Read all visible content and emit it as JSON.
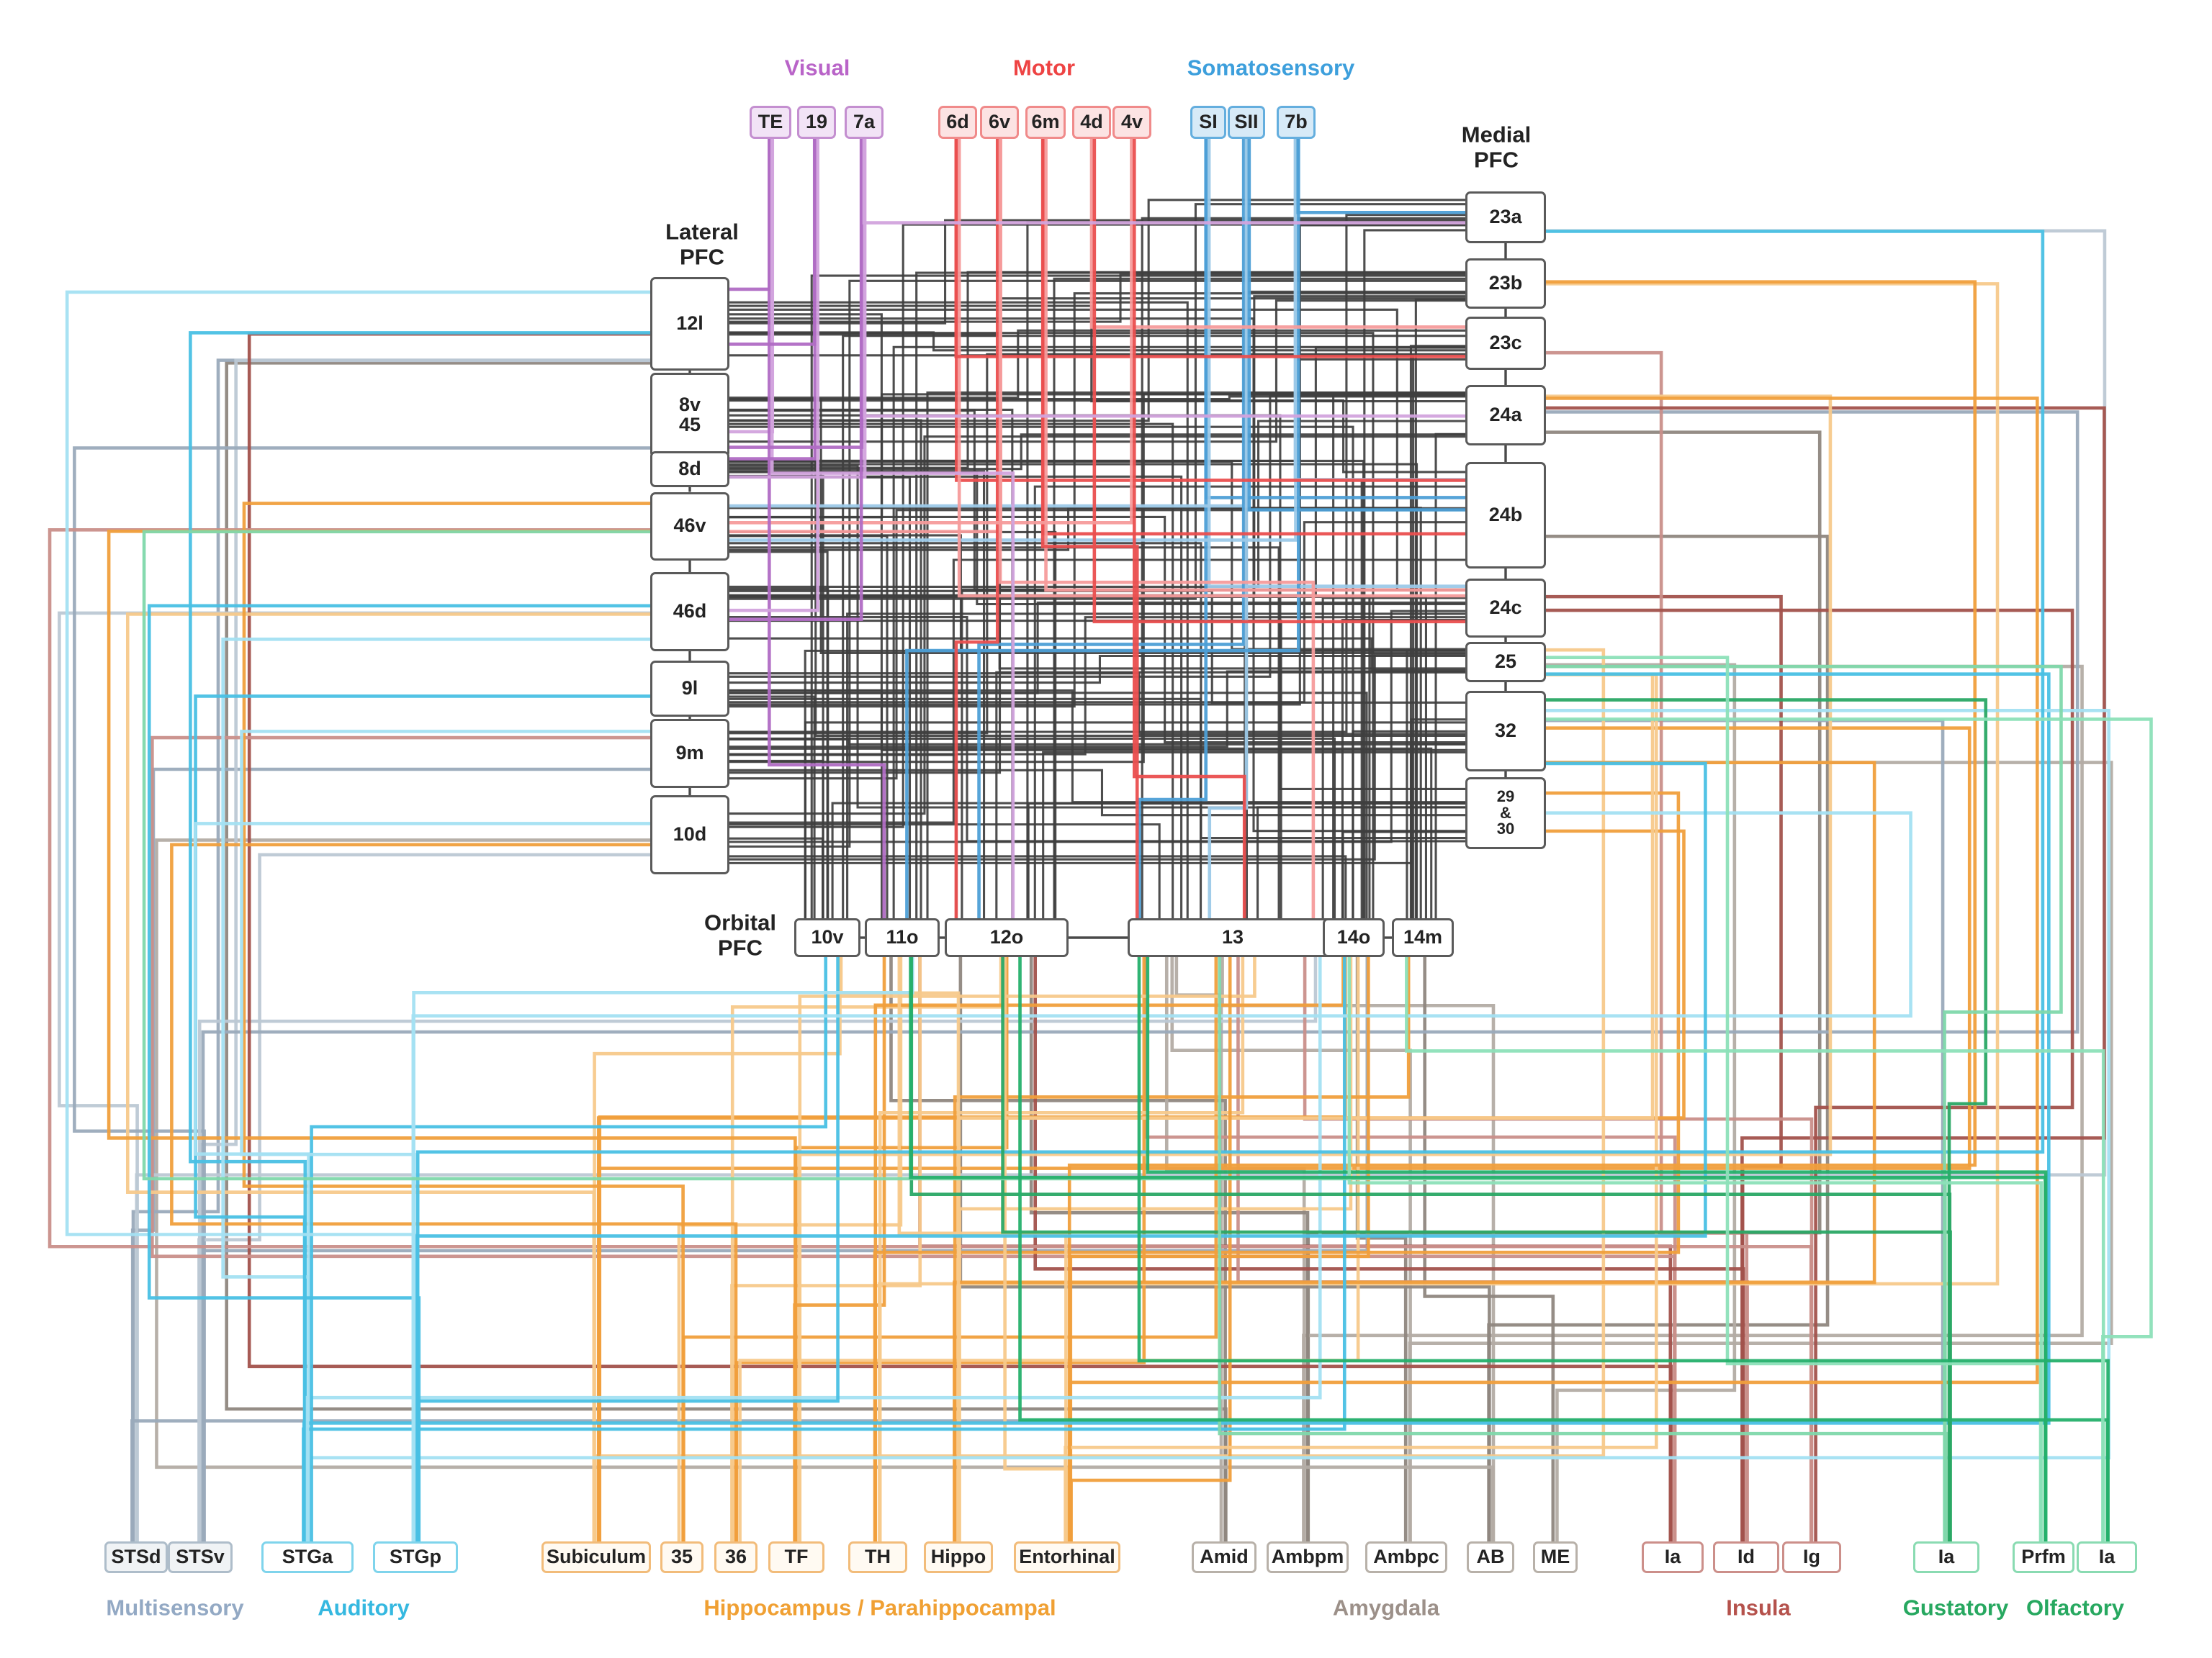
{
  "figure": {
    "kind": "brain-connectivity-diagram",
    "line_color_black": "#3f3f3f"
  },
  "groups": [
    {
      "id": "visual",
      "label": "Visual",
      "labelColor": "#b964c8",
      "border": "#c48fd0",
      "fill": "#f2e3f6",
      "lines": [
        "#b06cc4",
        "#d2a3dd"
      ],
      "nodes": [
        {
          "id": "TE",
          "label": "TE"
        },
        {
          "id": "a19",
          "label": "19"
        },
        {
          "id": "a7a",
          "label": "7a"
        }
      ]
    },
    {
      "id": "motor",
      "label": "Motor",
      "labelColor": "#ee4343",
      "border": "#f08a8a",
      "fill": "#fce3e3",
      "lines": [
        "#ea4f4f",
        "#f59b9b"
      ],
      "nodes": [
        {
          "id": "m6d",
          "label": "6d"
        },
        {
          "id": "m6v",
          "label": "6v"
        },
        {
          "id": "m6m",
          "label": "6m"
        },
        {
          "id": "m4d",
          "label": "4d"
        },
        {
          "id": "m4v",
          "label": "4v"
        }
      ]
    },
    {
      "id": "somatosensory",
      "label": "Somatosensory",
      "labelColor": "#3d9fdc",
      "border": "#64aede",
      "fill": "#d7eaf7",
      "lines": [
        "#4d9fd6",
        "#9cc9e8"
      ],
      "nodes": [
        {
          "id": "SI",
          "label": "SI"
        },
        {
          "id": "SII",
          "label": "SII"
        },
        {
          "id": "s7b",
          "label": "7b"
        }
      ]
    },
    {
      "id": "lateral",
      "label": "Lateral\nPFC",
      "labelColor": "#232323",
      "border": "#5a5a5a",
      "fill": "#ffffff",
      "lines": [
        "#3f3f3f",
        "#3f3f3f"
      ],
      "nodes": [
        {
          "id": "L12l",
          "label": "12l"
        },
        {
          "id": "L8v45",
          "label": "8v\n45"
        },
        {
          "id": "L8d",
          "label": "8d"
        },
        {
          "id": "L46v",
          "label": "46v"
        },
        {
          "id": "L46d",
          "label": "46d"
        },
        {
          "id": "L9l",
          "label": "9l"
        },
        {
          "id": "L9m",
          "label": "9m"
        },
        {
          "id": "L10d",
          "label": "10d"
        }
      ]
    },
    {
      "id": "medial",
      "label": "Medial\nPFC",
      "labelColor": "#232323",
      "border": "#5a5a5a",
      "fill": "#ffffff",
      "lines": [
        "#3f3f3f",
        "#3f3f3f"
      ],
      "nodes": [
        {
          "id": "M23a",
          "label": "23a"
        },
        {
          "id": "M23b",
          "label": "23b"
        },
        {
          "id": "M23c",
          "label": "23c"
        },
        {
          "id": "M24a",
          "label": "24a"
        },
        {
          "id": "M24b",
          "label": "24b"
        },
        {
          "id": "M24c",
          "label": "24c"
        },
        {
          "id": "M25",
          "label": "25"
        },
        {
          "id": "M32",
          "label": "32"
        },
        {
          "id": "M2930",
          "label": "29\n&\n30"
        }
      ]
    },
    {
      "id": "orbital",
      "label": "Orbital\nPFC",
      "labelColor": "#232323",
      "border": "#5a5a5a",
      "fill": "#ffffff",
      "lines": [
        "#3f3f3f",
        "#3f3f3f"
      ],
      "nodes": [
        {
          "id": "O10v",
          "label": "10v"
        },
        {
          "id": "O11o",
          "label": "11o"
        },
        {
          "id": "O12o",
          "label": "12o"
        },
        {
          "id": "O13",
          "label": "13"
        },
        {
          "id": "O14o",
          "label": "14o"
        },
        {
          "id": "O14m",
          "label": "14m"
        }
      ]
    },
    {
      "id": "multisensory",
      "label": "Multisensory",
      "labelColor": "#93a9c4",
      "border": "#aebdca",
      "fill": "#f0f3f5",
      "lines": [
        "#9aaabb",
        "#bcc8d4"
      ],
      "nodes": [
        {
          "id": "STSd",
          "label": "STSd"
        },
        {
          "id": "STSv",
          "label": "STSv"
        }
      ]
    },
    {
      "id": "auditory",
      "label": "Auditory",
      "labelColor": "#35b8e0",
      "border": "#7fd4ec",
      "fill": "#ffffff",
      "lines": [
        "#49c0e4",
        "#a3e0f2"
      ],
      "nodes": [
        {
          "id": "STGa",
          "label": "STGa"
        },
        {
          "id": "STGp",
          "label": "STGp"
        }
      ]
    },
    {
      "id": "hippocampal",
      "label": "Hippocampus / Parahippocampal",
      "labelColor": "#f0a033",
      "border": "#f2bc7a",
      "fill": "#fffaf2",
      "lines": [
        "#f09f3c",
        "#f7c98b"
      ],
      "nodes": [
        {
          "id": "Sub",
          "label": "Subiculum"
        },
        {
          "id": "h35",
          "label": "35"
        },
        {
          "id": "h36",
          "label": "36"
        },
        {
          "id": "TF",
          "label": "TF"
        },
        {
          "id": "TH",
          "label": "TH"
        },
        {
          "id": "Hippo",
          "label": "Hippo"
        },
        {
          "id": "Ent",
          "label": "Entorhinal"
        }
      ]
    },
    {
      "id": "amygdala",
      "label": "Amygdala",
      "labelColor": "#9c9089",
      "border": "#b8b1a9",
      "fill": "#ffffff",
      "lines": [
        "#8f8780",
        "#b3aca4"
      ],
      "nodes": [
        {
          "id": "Amid",
          "label": "Amid"
        },
        {
          "id": "Ambpm",
          "label": "Ambpm"
        },
        {
          "id": "Ambpc",
          "label": "Ambpc"
        },
        {
          "id": "AB",
          "label": "AB"
        },
        {
          "id": "ME",
          "label": "ME"
        }
      ]
    },
    {
      "id": "insula",
      "label": "Insula",
      "labelColor": "#b5524c",
      "border": "#cc8f8a",
      "fill": "#ffffff",
      "lines": [
        "#a2524c",
        "#c98f8a"
      ],
      "nodes": [
        {
          "id": "IaI",
          "label": "Ia"
        },
        {
          "id": "Id",
          "label": "Id"
        },
        {
          "id": "Ig",
          "label": "Ig"
        }
      ]
    },
    {
      "id": "gustatory",
      "label": "Gustatory",
      "labelColor": "#27a860",
      "border": "#8adbb2",
      "fill": "#ffffff",
      "lines": [
        "#2aa865",
        "#7fd8ab"
      ],
      "nodes": [
        {
          "id": "Gu",
          "label": "Ia"
        }
      ]
    },
    {
      "id": "olfactory",
      "label": "Olfactory",
      "labelColor": "#27a860",
      "border": "#8adbb2",
      "fill": "#ffffff",
      "lines": [
        "#25b06b",
        "#8ce0b8"
      ],
      "nodes": [
        {
          "id": "Prfm",
          "label": "Prfm"
        },
        {
          "id": "IaO",
          "label": "Ia"
        }
      ]
    }
  ],
  "connections": {
    "colored": {
      "visual": [
        [
          "TE",
          "L12l"
        ],
        [
          "TE",
          "L8v45"
        ],
        [
          "TE",
          "O11o"
        ],
        [
          "TE",
          "O12o"
        ],
        [
          "a19",
          "L8d"
        ],
        [
          "a19",
          "L46d"
        ],
        [
          "a19",
          "L12l"
        ],
        [
          "a7a",
          "L8d"
        ],
        [
          "a7a",
          "L8v45"
        ],
        [
          "a7a",
          "M24a"
        ],
        [
          "a7a",
          "L46d"
        ],
        [
          "a7a",
          "M23a"
        ]
      ],
      "motor": [
        [
          "m6d",
          "M24b"
        ],
        [
          "m6d",
          "M24c"
        ],
        [
          "m6d",
          "M23c"
        ],
        [
          "m6v",
          "L46v"
        ],
        [
          "m6v",
          "O12o"
        ],
        [
          "m6v",
          "O13"
        ],
        [
          "m6m",
          "M24b"
        ],
        [
          "m6m",
          "M24c"
        ],
        [
          "m6m",
          "O13"
        ],
        [
          "m4d",
          "M23c"
        ],
        [
          "m4d",
          "M24c"
        ],
        [
          "m4v",
          "L46v"
        ],
        [
          "m4v",
          "O13"
        ]
      ],
      "somatosensory": [
        [
          "SI",
          "M24b"
        ],
        [
          "SI",
          "M24c"
        ],
        [
          "SI",
          "O13"
        ],
        [
          "SII",
          "L46v"
        ],
        [
          "SII",
          "O12o"
        ],
        [
          "SII",
          "O13"
        ],
        [
          "SII",
          "M24b"
        ],
        [
          "s7b",
          "L46v"
        ],
        [
          "s7b",
          "O11o"
        ],
        [
          "s7b",
          "M24b"
        ],
        [
          "s7b",
          "M23a"
        ]
      ],
      "multisensory": [
        [
          "STSd",
          "L12l"
        ],
        [
          "STSd",
          "L46d"
        ],
        [
          "STSd",
          "L9m"
        ],
        [
          "STSd",
          "M23a"
        ],
        [
          "STSd",
          "M32"
        ],
        [
          "STSv",
          "L12l"
        ],
        [
          "STSv",
          "L8v45"
        ],
        [
          "STSv",
          "O13"
        ],
        [
          "STSv",
          "O14o"
        ],
        [
          "STSv",
          "L10d"
        ],
        [
          "STSv",
          "M24a"
        ]
      ],
      "auditory": [
        [
          "STGa",
          "L12l"
        ],
        [
          "STGa",
          "L46d"
        ],
        [
          "STGa",
          "L9l"
        ],
        [
          "STGa",
          "L10d"
        ],
        [
          "STGa",
          "M25"
        ],
        [
          "STGa",
          "M32"
        ],
        [
          "STGa",
          "O14o"
        ],
        [
          "STGa",
          "O13"
        ],
        [
          "STGa",
          "O10v"
        ],
        [
          "STGp",
          "L12l"
        ],
        [
          "STGp",
          "L46d"
        ],
        [
          "STGp",
          "L9m"
        ],
        [
          "STGp",
          "O10v"
        ],
        [
          "STGp",
          "O11o"
        ],
        [
          "STGp",
          "M23a"
        ],
        [
          "STGp",
          "M2930"
        ],
        [
          "STGp",
          "M32"
        ]
      ],
      "hippocampal": [
        [
          "Sub",
          "O14o"
        ],
        [
          "Sub",
          "M25"
        ],
        [
          "Sub",
          "M32"
        ],
        [
          "Sub",
          "O10v"
        ],
        [
          "Sub",
          "M2930"
        ],
        [
          "Sub",
          "L46d"
        ],
        [
          "h35",
          "O13"
        ],
        [
          "h35",
          "O11o"
        ],
        [
          "h35",
          "L46v"
        ],
        [
          "h36",
          "O12o"
        ],
        [
          "h36",
          "O13"
        ],
        [
          "h36",
          "O11o"
        ],
        [
          "h36",
          "L10d"
        ],
        [
          "h36",
          "O14o"
        ],
        [
          "TF",
          "O12o"
        ],
        [
          "TF",
          "O13"
        ],
        [
          "TF",
          "L46v"
        ],
        [
          "TF",
          "M24a"
        ],
        [
          "TF",
          "O11o"
        ],
        [
          "TH",
          "O13"
        ],
        [
          "TH",
          "O14o"
        ],
        [
          "TH",
          "M23b"
        ],
        [
          "TH",
          "M2930"
        ],
        [
          "Hippo",
          "O14o"
        ],
        [
          "Hippo",
          "O14m"
        ],
        [
          "Hippo",
          "M25"
        ],
        [
          "Hippo",
          "M32"
        ],
        [
          "Hippo",
          "O10v"
        ],
        [
          "Ent",
          "O13"
        ],
        [
          "Ent",
          "O12o"
        ],
        [
          "Ent",
          "O14o"
        ],
        [
          "Ent",
          "O11o"
        ],
        [
          "Ent",
          "M24a"
        ],
        [
          "Ent",
          "M25"
        ],
        [
          "Ent",
          "M23b"
        ]
      ],
      "amygdala": [
        [
          "Amid",
          "L12l"
        ],
        [
          "Amid",
          "O13"
        ],
        [
          "Amid",
          "O11o"
        ],
        [
          "Ambpm",
          "O13"
        ],
        [
          "Ambpm",
          "M24a"
        ],
        [
          "Ambpm",
          "M25"
        ],
        [
          "Ambpm",
          "O12o"
        ],
        [
          "Ambpc",
          "O13"
        ],
        [
          "Ambpc",
          "O14o"
        ],
        [
          "Ambpc",
          "M32"
        ],
        [
          "AB",
          "O12o"
        ],
        [
          "AB",
          "O13"
        ],
        [
          "AB",
          "M24b"
        ],
        [
          "AB",
          "L10d"
        ],
        [
          "ME",
          "O14m"
        ],
        [
          "ME",
          "M25"
        ]
      ],
      "insula": [
        [
          "IaI",
          "L12l"
        ],
        [
          "IaI",
          "O13"
        ],
        [
          "IaI",
          "O11o"
        ],
        [
          "IaI",
          "L9m"
        ],
        [
          "Id",
          "O12o"
        ],
        [
          "Id",
          "O13"
        ],
        [
          "Id",
          "M24c"
        ],
        [
          "Id",
          "M23c"
        ],
        [
          "Id",
          "M24a"
        ],
        [
          "Ig",
          "O13"
        ],
        [
          "Ig",
          "M24c"
        ],
        [
          "Ig",
          "L46v"
        ]
      ],
      "gustatory": [
        [
          "Gu",
          "O12o"
        ],
        [
          "Gu",
          "O13"
        ],
        [
          "Gu",
          "O11o"
        ],
        [
          "Gu",
          "L46v"
        ],
        [
          "Gu",
          "M32"
        ],
        [
          "Gu",
          "M25"
        ]
      ],
      "olfactory": [
        [
          "Prfm",
          "O13"
        ],
        [
          "Prfm",
          "O14o"
        ],
        [
          "Prfm",
          "O11o"
        ],
        [
          "Prfm",
          "M25"
        ],
        [
          "IaO",
          "O13"
        ],
        [
          "IaO",
          "O14m"
        ],
        [
          "IaO",
          "O12o"
        ],
        [
          "IaO",
          "M32"
        ]
      ]
    },
    "black_cross": [
      {
        "from": [
          "L12l",
          "L8v45",
          "L8d",
          "L46v",
          "L46d",
          "L9l",
          "L9m",
          "L10d"
        ],
        "to": [
          "M23a",
          "M23b",
          "M23c",
          "M24a",
          "M24b",
          "M24c",
          "M25",
          "M32",
          "M2930"
        ],
        "keep": 0.78
      },
      {
        "from": [
          "L12l",
          "L8v45",
          "L8d",
          "L46v",
          "L46d",
          "L9l",
          "L9m",
          "L10d"
        ],
        "to": [
          "O10v",
          "O11o",
          "O12o",
          "O13",
          "O14o",
          "O14m"
        ],
        "keep": 0.62
      },
      {
        "from": [
          "M23a",
          "M23b",
          "M23c",
          "M24a",
          "M24b",
          "M24c",
          "M25",
          "M32",
          "M2930"
        ],
        "to": [
          "O10v",
          "O11o",
          "O12o",
          "O13",
          "O14o",
          "O14m"
        ],
        "keep": 0.62
      }
    ]
  }
}
